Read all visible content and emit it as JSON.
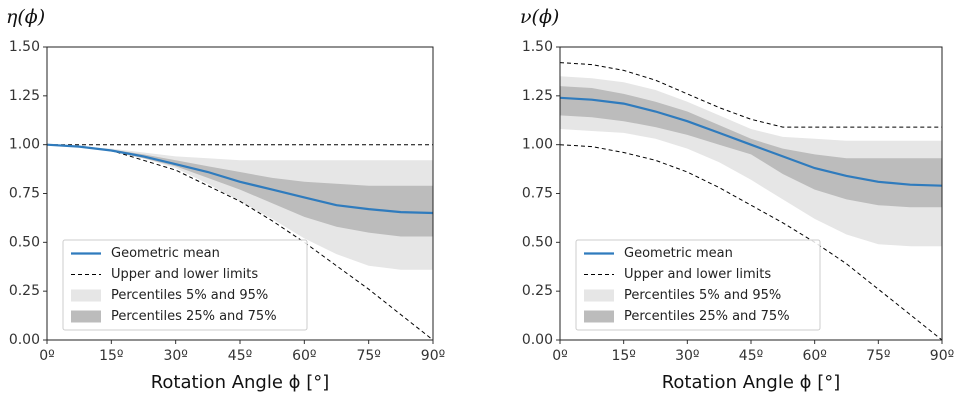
{
  "chart_data": [
    {
      "type": "line",
      "title": "η(ϕ)",
      "xlabel": "Rotation Angle ϕ [°]",
      "x": [
        0,
        7.5,
        15,
        22.5,
        30,
        37.5,
        45,
        52.5,
        60,
        67.5,
        75,
        82.5,
        90
      ],
      "xlim": [
        0,
        90
      ],
      "xticks": [
        {
          "value": 0,
          "label": "0º"
        },
        {
          "value": 15,
          "label": "15º"
        },
        {
          "value": 30,
          "label": "30º"
        },
        {
          "value": 45,
          "label": "45º"
        },
        {
          "value": 60,
          "label": "60º"
        },
        {
          "value": 75,
          "label": "75º"
        },
        {
          "value": 90,
          "label": "90º"
        }
      ],
      "ylim": [
        0,
        1.5
      ],
      "yticks": [
        {
          "value": 0,
          "label": "0.00"
        },
        {
          "value": 0.25,
          "label": "0.25"
        },
        {
          "value": 0.5,
          "label": "0.50"
        },
        {
          "value": 0.75,
          "label": "0.75"
        },
        {
          "value": 1,
          "label": "1.00"
        },
        {
          "value": 1.25,
          "label": "1.25"
        },
        {
          "value": 1.5,
          "label": "1.50"
        }
      ],
      "legend": "lower left",
      "series": [
        {
          "name": "Geometric mean",
          "color": "#2f7bbd",
          "values": [
            1.0,
            0.99,
            0.97,
            0.94,
            0.9,
            0.86,
            0.81,
            0.77,
            0.73,
            0.69,
            0.67,
            0.655,
            0.65
          ]
        },
        {
          "name": "Upper and lower limits",
          "color": "#000000",
          "style": "dashed",
          "upper": [
            1,
            1,
            1,
            1,
            1,
            1,
            1,
            1,
            1,
            1,
            1,
            1,
            1
          ],
          "lower": [
            1.0,
            0.99,
            0.97,
            0.92,
            0.87,
            0.79,
            0.71,
            0.61,
            0.5,
            0.38,
            0.26,
            0.13,
            0.0
          ]
        },
        {
          "name": "Percentiles 5% and 95%",
          "color": "#e6e6e6",
          "style": "band",
          "upper": [
            1.0,
            0.99,
            0.98,
            0.96,
            0.94,
            0.93,
            0.92,
            0.92,
            0.92,
            0.92,
            0.92,
            0.92,
            0.92
          ],
          "lower": [
            1.0,
            0.99,
            0.97,
            0.93,
            0.88,
            0.8,
            0.71,
            0.62,
            0.52,
            0.44,
            0.38,
            0.36,
            0.36
          ]
        },
        {
          "name": "Percentiles 25% and 75%",
          "color": "#bcbcbc",
          "style": "band",
          "upper": [
            1.0,
            0.99,
            0.975,
            0.95,
            0.92,
            0.89,
            0.86,
            0.83,
            0.81,
            0.8,
            0.79,
            0.79,
            0.79
          ],
          "lower": [
            1.0,
            0.99,
            0.965,
            0.93,
            0.89,
            0.83,
            0.77,
            0.7,
            0.63,
            0.58,
            0.55,
            0.53,
            0.53
          ]
        }
      ]
    },
    {
      "type": "line",
      "title": "ν(ϕ)",
      "xlabel": "Rotation Angle ϕ [°]",
      "x": [
        0,
        7.5,
        15,
        22.5,
        30,
        37.5,
        45,
        52.5,
        60,
        67.5,
        75,
        82.5,
        90
      ],
      "xlim": [
        0,
        90
      ],
      "xticks": [
        {
          "value": 0,
          "label": "0º"
        },
        {
          "value": 15,
          "label": "15º"
        },
        {
          "value": 30,
          "label": "30º"
        },
        {
          "value": 45,
          "label": "45º"
        },
        {
          "value": 60,
          "label": "60º"
        },
        {
          "value": 75,
          "label": "75º"
        },
        {
          "value": 90,
          "label": "90º"
        }
      ],
      "ylim": [
        0,
        1.5
      ],
      "yticks": [
        {
          "value": 0,
          "label": "0.00"
        },
        {
          "value": 0.25,
          "label": "0.25"
        },
        {
          "value": 0.5,
          "label": "0.50"
        },
        {
          "value": 0.75,
          "label": "0.75"
        },
        {
          "value": 1,
          "label": "1.00"
        },
        {
          "value": 1.25,
          "label": "1.25"
        },
        {
          "value": 1.5,
          "label": "1.50"
        }
      ],
      "legend": "lower left",
      "series": [
        {
          "name": "Geometric mean",
          "color": "#2f7bbd",
          "values": [
            1.24,
            1.23,
            1.21,
            1.17,
            1.12,
            1.06,
            1.0,
            0.94,
            0.88,
            0.84,
            0.81,
            0.795,
            0.79
          ]
        },
        {
          "name": "Upper and lower limits",
          "color": "#000000",
          "style": "dashed",
          "upper": [
            1.42,
            1.41,
            1.38,
            1.33,
            1.26,
            1.19,
            1.13,
            1.09,
            1.09,
            1.09,
            1.09,
            1.09,
            1.09
          ],
          "lower": [
            1.0,
            0.99,
            0.96,
            0.92,
            0.86,
            0.78,
            0.69,
            0.6,
            0.5,
            0.39,
            0.26,
            0.13,
            0.0
          ]
        },
        {
          "name": "Percentiles 5% and 95%",
          "color": "#e6e6e6",
          "style": "band",
          "upper": [
            1.35,
            1.34,
            1.32,
            1.28,
            1.22,
            1.15,
            1.08,
            1.04,
            1.03,
            1.02,
            1.02,
            1.02,
            1.02
          ],
          "lower": [
            1.08,
            1.07,
            1.06,
            1.03,
            0.98,
            0.91,
            0.82,
            0.72,
            0.62,
            0.54,
            0.49,
            0.48,
            0.48
          ]
        },
        {
          "name": "Percentiles 25% and 75%",
          "color": "#bcbcbc",
          "style": "band",
          "upper": [
            1.3,
            1.29,
            1.26,
            1.22,
            1.17,
            1.1,
            1.03,
            0.98,
            0.95,
            0.93,
            0.93,
            0.93,
            0.93
          ],
          "lower": [
            1.15,
            1.14,
            1.12,
            1.09,
            1.05,
            1.0,
            0.95,
            0.85,
            0.77,
            0.72,
            0.69,
            0.68,
            0.68
          ]
        }
      ]
    }
  ]
}
